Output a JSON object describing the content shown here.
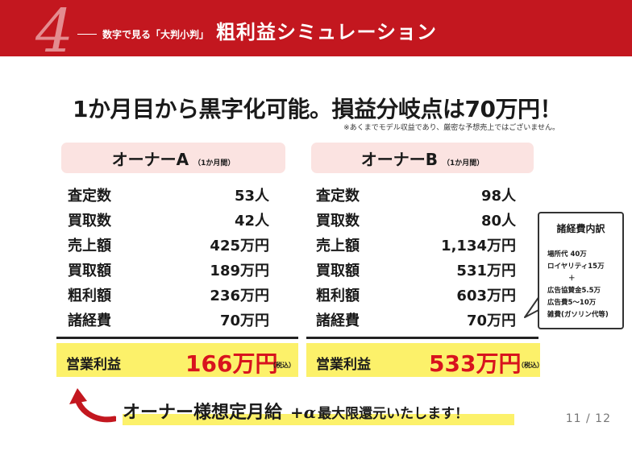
{
  "header": {
    "section_number": "4",
    "subtitle": "数字で見る「大判小判」",
    "title": "粗利益シミュレーション"
  },
  "headline": "1か月目から黒字化可能。損益分岐点は70万円！",
  "disclaimer": "※あくまでモデル収益であり、厳密な予想売上ではございません。",
  "owner_a": {
    "name": "オーナーA",
    "period": "（1か月間）",
    "rows": [
      {
        "label": "査定数",
        "value": "53人"
      },
      {
        "label": "買取数",
        "value": "42人"
      },
      {
        "label": "売上額",
        "value": "425万円"
      },
      {
        "label": "買取額",
        "value": "189万円"
      },
      {
        "label": "粗利額",
        "value": "236万円"
      },
      {
        "label": "諸経費",
        "value": "70万円"
      }
    ],
    "profit_label": "営業利益",
    "profit_value": "166万円",
    "tax_note": "（税込）"
  },
  "owner_b": {
    "name": "オーナーB",
    "period": "（1か月間）",
    "rows": [
      {
        "label": "査定数",
        "value": "98人"
      },
      {
        "label": "買取数",
        "value": "80人"
      },
      {
        "label": "売上額",
        "value": "1,134万円"
      },
      {
        "label": "買取額",
        "value": "531万円"
      },
      {
        "label": "粗利額",
        "value": "603万円"
      },
      {
        "label": "諸経費",
        "value": "70万円"
      }
    ],
    "profit_label": "営業利益",
    "profit_value": "533万円",
    "tax_note": "（税込）"
  },
  "expense_breakdown": {
    "title": "諸経費内訳",
    "items": [
      "場所代 40万",
      "ロイヤリティ15万",
      "＋",
      "広告協賛金5.5万",
      "広告費5～10万",
      "雑費(ガソリン代等)"
    ]
  },
  "bottom_message": {
    "main": "オーナー様想定月給",
    "alpha": "+α",
    "tail": "最大限還元いたします！"
  },
  "page_number": "11 / 12",
  "colors": {
    "header_red": "#c3171f",
    "highlight_yellow": "#fcf16a",
    "profit_red": "#d8131e",
    "owner_header_pink": "#fbe3e1"
  }
}
